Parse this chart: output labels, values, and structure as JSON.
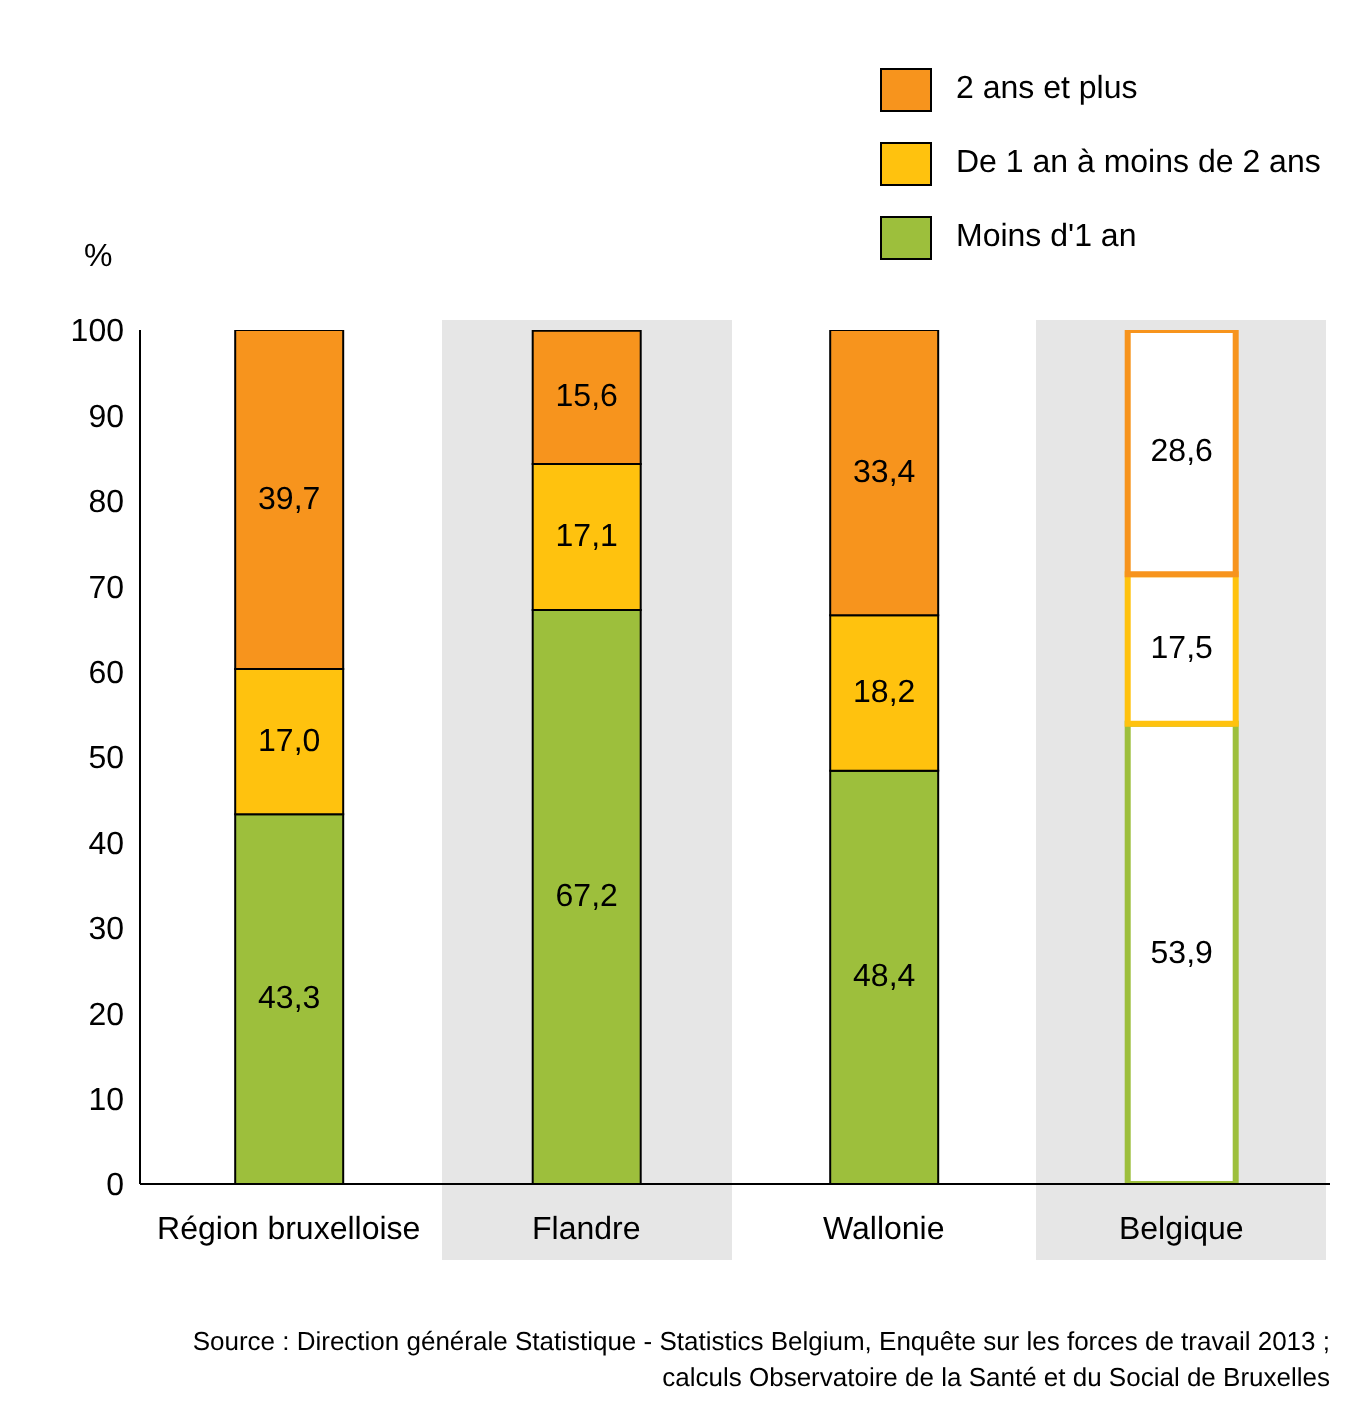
{
  "chart_data": {
    "type": "bar",
    "stacked": true,
    "ylabel": "%",
    "categories": [
      "Région bruxelloise",
      "Flandre",
      "Wallonie",
      "Belgique"
    ],
    "series": [
      {
        "name": "Moins d'1 an",
        "color": "#9dbf3c",
        "colors": [
          "#9dbf3c",
          "#9dbf3c",
          "#9dbf3c",
          "#ffffff"
        ],
        "values": [
          43.3,
          67.2,
          48.4,
          53.9
        ],
        "value_labels": [
          "43,3",
          "67,2",
          "48,4",
          "53,9"
        ]
      },
      {
        "name": "De 1 an à moins de 2 ans",
        "color": "#ffc20e",
        "colors": [
          "#ffc20e",
          "#ffc20e",
          "#ffc20e",
          "#ffffff"
        ],
        "values": [
          17.0,
          17.1,
          18.2,
          17.5
        ],
        "value_labels": [
          "17,0",
          "17,1",
          "18,2",
          "17,5"
        ]
      },
      {
        "name": "2 ans et plus",
        "color": "#f7941d",
        "colors": [
          "#f7941d",
          "#f7941d",
          "#f7941d",
          "#ffffff"
        ],
        "values": [
          39.7,
          15.6,
          33.4,
          28.6
        ],
        "value_labels": [
          "39,7",
          "15,6",
          "33,4",
          "28,6"
        ]
      }
    ],
    "ylim": [
      0,
      100
    ],
    "yticks": [
      0,
      10,
      20,
      30,
      40,
      50,
      60,
      70,
      80,
      90,
      100
    ],
    "legend": "top right",
    "bands": [
      {
        "axis": "x",
        "from": "Flandre",
        "to": "Flandre",
        "color": "#e6e6e6"
      },
      {
        "axis": "x",
        "from": "Belgique",
        "to": "Belgique",
        "color": "#e6e6e6"
      }
    ],
    "annotations": [
      "Source : Direction générale Statistique - Statistics Belgium, Enquête sur les forces de travail 2013 ; calculs Observatoire de la Santé et du Social de Bruxelles"
    ]
  }
}
